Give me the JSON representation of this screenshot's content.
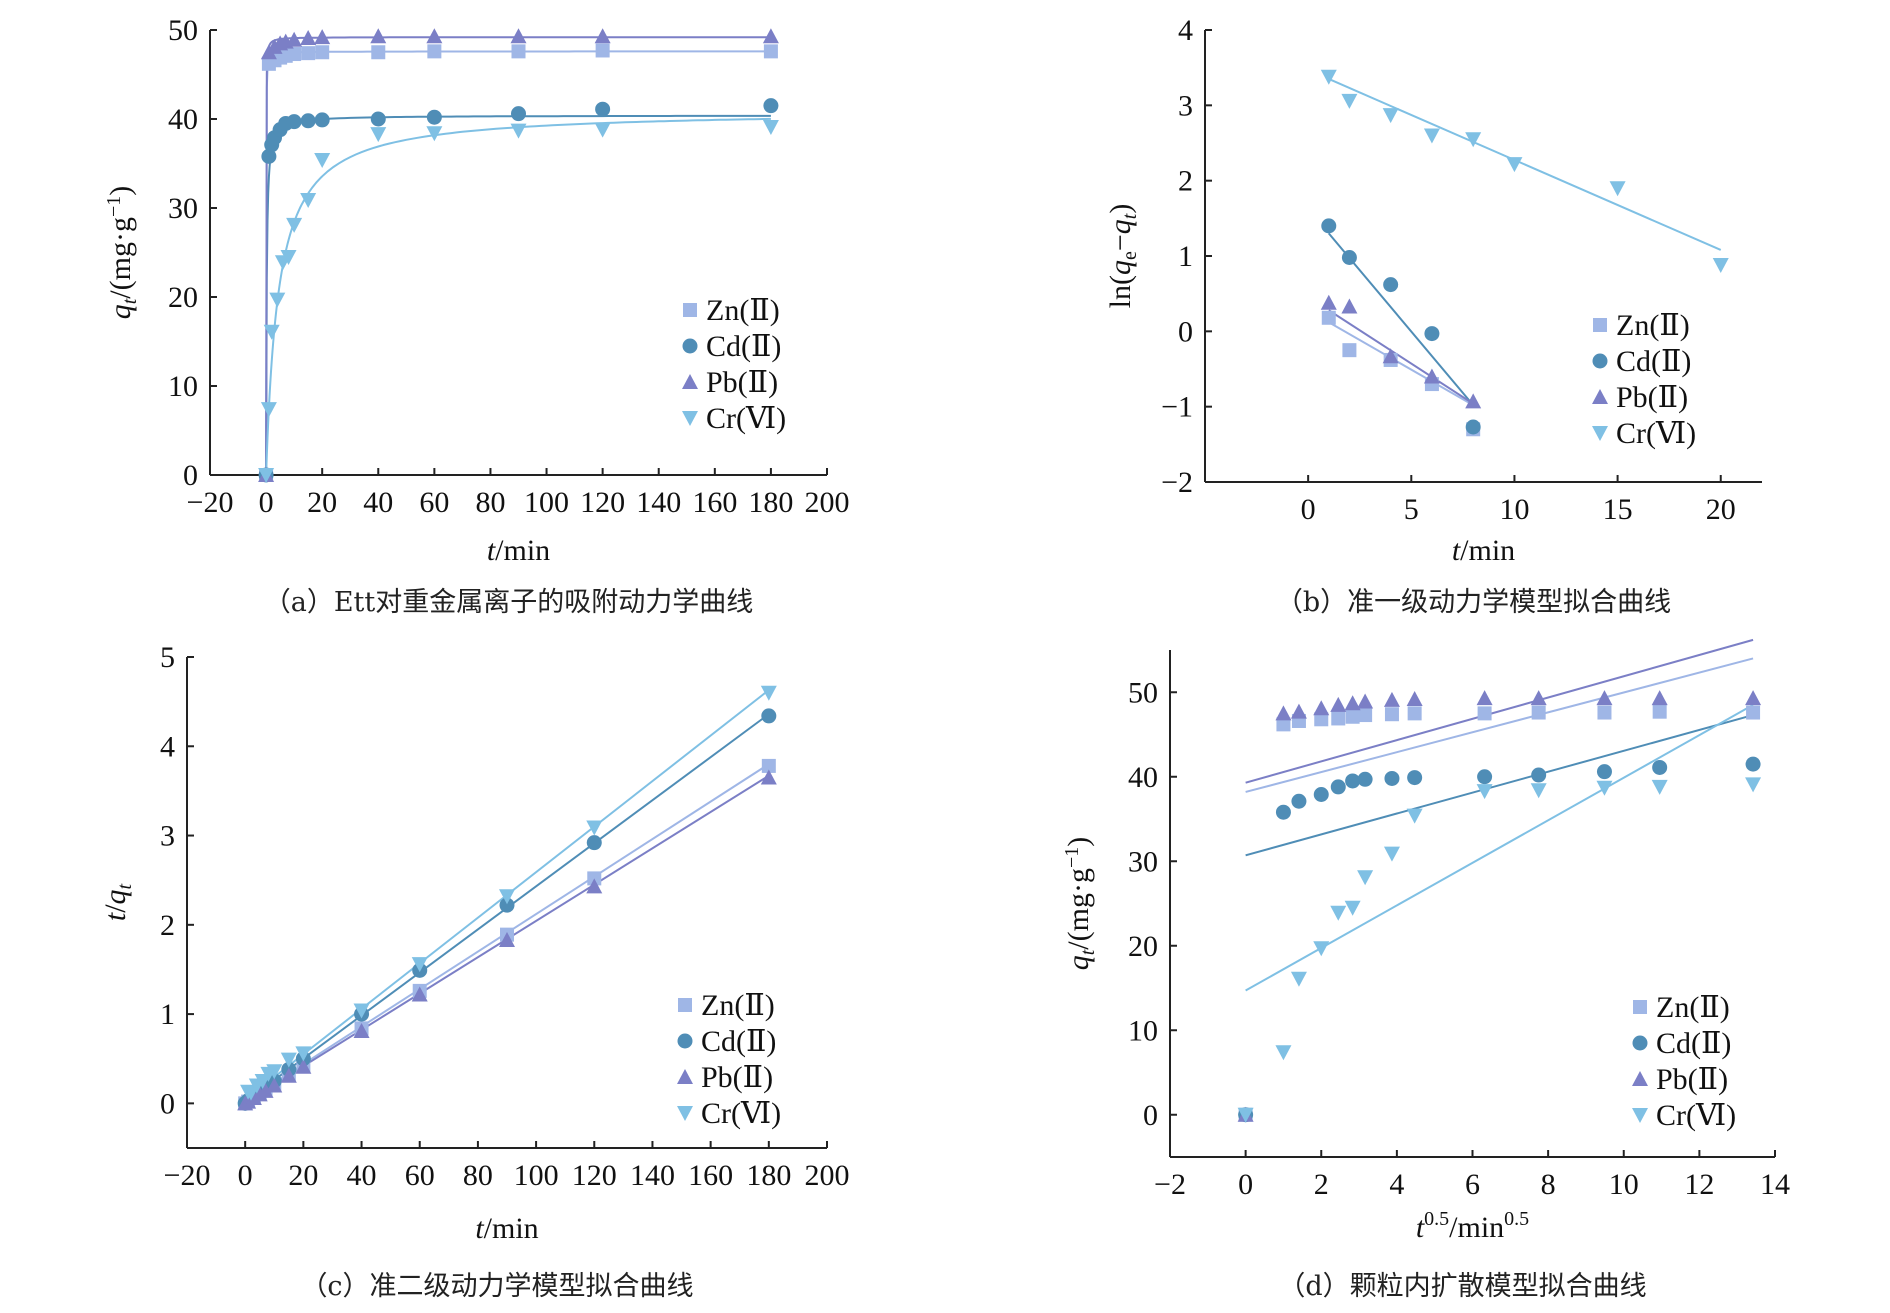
{
  "colors": {
    "Zn": "#9fb6e6",
    "Cd": "#4f8db6",
    "Pb": "#7b7fc6",
    "Cr": "#7fc0e4"
  },
  "chart_data": [
    {
      "id": "a",
      "type": "scatter",
      "caption": "（a）Ett对重金属离子的吸附动力学曲线",
      "xlabel": "t/min",
      "ylabel": "qt/(mg·g−1)",
      "xlim": [
        -20,
        200
      ],
      "ylim": [
        0,
        50
      ],
      "xticks": [
        -20,
        0,
        20,
        40,
        60,
        80,
        100,
        120,
        140,
        160,
        180,
        200
      ],
      "yticks": [
        0,
        10,
        20,
        30,
        40,
        50
      ],
      "legend_position": "bottom-right",
      "series": [
        {
          "name": "Zn(Ⅱ)",
          "color_key": "Zn",
          "marker": "square",
          "x": [
            0,
            1,
            3,
            5,
            7,
            10,
            15,
            20,
            40,
            60,
            90,
            120,
            180
          ],
          "y": [
            0,
            46.2,
            46.6,
            46.9,
            47.1,
            47.3,
            47.4,
            47.5,
            47.5,
            47.6,
            47.6,
            47.7,
            47.6
          ]
        },
        {
          "name": "Cd(Ⅱ)",
          "color_key": "Cd",
          "marker": "circle",
          "x": [
            0,
            1,
            2,
            3,
            5,
            7,
            10,
            15,
            20,
            40,
            60,
            90,
            120,
            180
          ],
          "y": [
            0,
            35.8,
            37.1,
            37.9,
            38.8,
            39.5,
            39.7,
            39.8,
            39.9,
            40.0,
            40.2,
            40.6,
            41.1,
            41.5
          ]
        },
        {
          "name": "Pb(Ⅱ)",
          "color_key": "Pb",
          "marker": "triangle",
          "x": [
            0,
            1,
            3,
            5,
            7,
            10,
            15,
            20,
            40,
            60,
            90,
            120,
            180
          ],
          "y": [
            0,
            47.5,
            48.1,
            48.5,
            48.7,
            48.9,
            49.1,
            49.2,
            49.3,
            49.3,
            49.3,
            49.3,
            49.3
          ]
        },
        {
          "name": "Cr(Ⅵ)",
          "color_key": "Cr",
          "marker": "triangle-down",
          "x": [
            0,
            1,
            2,
            4,
            6,
            8,
            10,
            15,
            20,
            40,
            60,
            90,
            120,
            180
          ],
          "y": [
            0,
            7.4,
            16.1,
            19.7,
            23.9,
            24.5,
            28.1,
            30.9,
            35.4,
            38.3,
            38.4,
            38.7,
            38.8,
            39.1
          ]
        }
      ],
      "fits": [
        {
          "color_key": "Zn",
          "model": "pso",
          "qe": 47.6,
          "k2": 0.9
        },
        {
          "color_key": "Cd",
          "model": "pso",
          "qe": 40.4,
          "k2": 0.12
        },
        {
          "color_key": "Pb",
          "model": "pso",
          "qe": 49.2,
          "k2": 0.9
        },
        {
          "color_key": "Cr",
          "model": "pso",
          "qe": 41.0,
          "k2": 0.0055
        }
      ]
    },
    {
      "id": "b",
      "type": "scatter",
      "caption": "（b）准一级动力学模型拟合曲线",
      "xlabel": "t/min",
      "ylabel": "ln(qe−qt)",
      "xlim": [
        -5,
        22
      ],
      "ylim": [
        -2,
        4
      ],
      "xticks": [
        0,
        5,
        10,
        15,
        20
      ],
      "yticks": [
        -2,
        -1,
        0,
        1,
        2,
        3,
        4
      ],
      "legend_position": "bottom-right",
      "series": [
        {
          "name": "Zn(Ⅱ)",
          "color_key": "Zn",
          "marker": "square",
          "x": [
            1,
            2,
            4,
            6,
            8
          ],
          "y": [
            0.18,
            -0.25,
            -0.38,
            -0.7,
            -1.3
          ]
        },
        {
          "name": "Cd(Ⅱ)",
          "color_key": "Cd",
          "marker": "circle",
          "x": [
            1,
            2,
            4,
            6,
            8
          ],
          "y": [
            1.4,
            0.98,
            0.62,
            -0.03,
            -1.27
          ]
        },
        {
          "name": "Pb(Ⅱ)",
          "color_key": "Pb",
          "marker": "triangle",
          "x": [
            1,
            2,
            4,
            6,
            8
          ],
          "y": [
            0.38,
            0.33,
            -0.33,
            -0.6,
            -0.93
          ]
        },
        {
          "name": "Cr(Ⅵ)",
          "color_key": "Cr",
          "marker": "triangle-down",
          "x": [
            1,
            2,
            4,
            6,
            8,
            10,
            15,
            20
          ],
          "y": [
            3.38,
            3.06,
            2.87,
            2.6,
            2.55,
            2.22,
            1.9,
            0.88
          ]
        }
      ],
      "fits": [
        {
          "color_key": "Zn",
          "model": "line",
          "x0": 1,
          "y0": 0.12,
          "x1": 8,
          "y1": -0.98
        },
        {
          "color_key": "Cd",
          "model": "line",
          "x0": 1,
          "y0": 1.3,
          "x1": 8,
          "y1": -0.98
        },
        {
          "color_key": "Pb",
          "model": "line",
          "x0": 1,
          "y0": 0.28,
          "x1": 8,
          "y1": -0.96
        },
        {
          "color_key": "Cr",
          "model": "line",
          "x0": 1,
          "y0": 3.35,
          "x1": 20,
          "y1": 1.08
        }
      ]
    },
    {
      "id": "c",
      "type": "scatter",
      "caption": "（c）准二级动力学模型拟合曲线",
      "xlabel": "t/min",
      "ylabel": "t/qt",
      "xlim": [
        -20,
        200
      ],
      "ylim": [
        -0.5,
        5
      ],
      "xticks": [
        -20,
        0,
        20,
        40,
        60,
        80,
        100,
        120,
        140,
        160,
        180,
        200
      ],
      "yticks": [
        0,
        1,
        2,
        3,
        4,
        5
      ],
      "legend_position": "bottom-right",
      "series": [
        {
          "name": "Zn(Ⅱ)",
          "color_key": "Zn",
          "marker": "square",
          "x": [
            0,
            1,
            3,
            5,
            7,
            10,
            15,
            20,
            40,
            60,
            90,
            120,
            180
          ],
          "y": [
            0,
            0.02,
            0.06,
            0.11,
            0.15,
            0.21,
            0.32,
            0.42,
            0.84,
            1.26,
            1.89,
            2.52,
            3.78
          ]
        },
        {
          "name": "Cd(Ⅱ)",
          "color_key": "Cd",
          "marker": "circle",
          "x": [
            0,
            1,
            3,
            5,
            7,
            10,
            15,
            20,
            40,
            60,
            90,
            120,
            180
          ],
          "y": [
            0,
            0.03,
            0.08,
            0.13,
            0.18,
            0.25,
            0.38,
            0.5,
            1.0,
            1.49,
            2.22,
            2.92,
            4.34
          ]
        },
        {
          "name": "Pb(Ⅱ)",
          "color_key": "Pb",
          "marker": "triangle",
          "x": [
            0,
            1,
            3,
            5,
            7,
            10,
            15,
            20,
            40,
            60,
            90,
            120,
            180
          ],
          "y": [
            0,
            0.02,
            0.06,
            0.1,
            0.14,
            0.2,
            0.31,
            0.41,
            0.81,
            1.22,
            1.83,
            2.43,
            3.65
          ]
        },
        {
          "name": "Cr(Ⅵ)",
          "color_key": "Cr",
          "marker": "triangle-down",
          "x": [
            1,
            2,
            4,
            6,
            8,
            10,
            15,
            20,
            40,
            60,
            90,
            120,
            180
          ],
          "y": [
            0.13,
            0.12,
            0.2,
            0.25,
            0.33,
            0.36,
            0.49,
            0.56,
            1.04,
            1.56,
            2.32,
            3.09,
            4.6
          ]
        }
      ],
      "fits": [
        {
          "color_key": "Zn",
          "model": "line",
          "x0": 0,
          "y0": 0.02,
          "x1": 180,
          "y1": 3.8
        },
        {
          "color_key": "Cd",
          "model": "line",
          "x0": 0,
          "y0": 0.02,
          "x1": 180,
          "y1": 4.36
        },
        {
          "color_key": "Pb",
          "model": "line",
          "x0": 0,
          "y0": 0.01,
          "x1": 180,
          "y1": 3.67
        },
        {
          "color_key": "Cr",
          "model": "line",
          "x0": 0,
          "y0": 0.04,
          "x1": 180,
          "y1": 4.63
        }
      ]
    },
    {
      "id": "d",
      "type": "scatter",
      "caption": "（d）颗粒内扩散模型拟合曲线",
      "xlabel": "t0.5/min0.5",
      "ylabel": "qt/(mg·g−1)",
      "xlim": [
        -2,
        14
      ],
      "ylim": [
        -5,
        55
      ],
      "xticks": [
        -2,
        0,
        2,
        4,
        6,
        8,
        10,
        12,
        14
      ],
      "yticks": [
        0,
        10,
        20,
        30,
        40,
        50
      ],
      "legend_position": "bottom-right",
      "series": [
        {
          "name": "Zn(Ⅱ)",
          "color_key": "Zn",
          "marker": "square",
          "x": [
            0,
            1,
            1.41,
            2,
            2.45,
            2.83,
            3.16,
            3.87,
            4.47,
            6.32,
            7.75,
            9.49,
            10.95,
            13.42
          ],
          "y": [
            0,
            46.2,
            46.6,
            46.8,
            46.9,
            47.1,
            47.3,
            47.4,
            47.5,
            47.5,
            47.6,
            47.6,
            47.7,
            47.6
          ]
        },
        {
          "name": "Cd(Ⅱ)",
          "color_key": "Cd",
          "marker": "circle",
          "x": [
            0,
            1,
            1.41,
            2,
            2.45,
            2.83,
            3.16,
            3.87,
            4.47,
            6.32,
            7.75,
            9.49,
            10.95,
            13.42
          ],
          "y": [
            0,
            35.8,
            37.1,
            37.9,
            38.8,
            39.5,
            39.7,
            39.8,
            39.9,
            40.0,
            40.2,
            40.6,
            41.1,
            41.5
          ]
        },
        {
          "name": "Pb(Ⅱ)",
          "color_key": "Pb",
          "marker": "triangle",
          "x": [
            0,
            1,
            1.41,
            2,
            2.45,
            2.83,
            3.16,
            3.87,
            4.47,
            6.32,
            7.75,
            9.49,
            10.95,
            13.42
          ],
          "y": [
            0,
            47.5,
            47.7,
            48.1,
            48.5,
            48.7,
            48.9,
            49.1,
            49.2,
            49.3,
            49.3,
            49.3,
            49.3,
            49.3
          ]
        },
        {
          "name": "Cr(Ⅵ)",
          "color_key": "Cr",
          "marker": "triangle-down",
          "x": [
            0,
            1,
            1.41,
            2,
            2.45,
            2.83,
            3.16,
            3.87,
            4.47,
            6.32,
            7.75,
            9.49,
            10.95,
            13.42
          ],
          "y": [
            0,
            7.4,
            16.1,
            19.7,
            23.9,
            24.5,
            28.1,
            30.9,
            35.4,
            38.3,
            38.4,
            38.7,
            38.8,
            39.1
          ]
        }
      ],
      "fits": [
        {
          "color_key": "Zn",
          "model": "line",
          "x0": 0,
          "y0": 38.2,
          "x1": 13.42,
          "y1": 54.0
        },
        {
          "color_key": "Cd",
          "model": "line",
          "x0": 0,
          "y0": 30.7,
          "x1": 13.42,
          "y1": 47.3
        },
        {
          "color_key": "Pb",
          "model": "line",
          "x0": 0,
          "y0": 39.3,
          "x1": 13.42,
          "y1": 56.2
        },
        {
          "color_key": "Cr",
          "model": "line",
          "x0": 0,
          "y0": 14.7,
          "x1": 13.42,
          "y1": 48.5
        }
      ]
    }
  ]
}
